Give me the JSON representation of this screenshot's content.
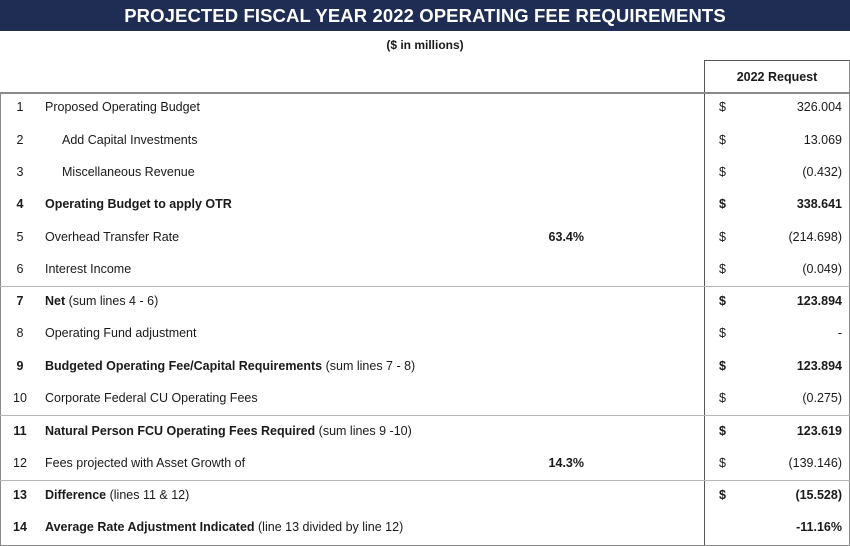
{
  "title": "PROJECTED FISCAL YEAR 2022 OPERATING FEE REQUIREMENTS",
  "subtitle": "($ in millions)",
  "column_header": "2022 Request",
  "rows": [
    {
      "num": "1",
      "label_bold": "",
      "label": "Proposed Operating Budget",
      "pct": "",
      "currency": "$",
      "value": "326.004"
    },
    {
      "num": "2",
      "label_bold": "",
      "label": "Add Capital Investments",
      "pct": "",
      "currency": "$",
      "value": "13.069"
    },
    {
      "num": "3",
      "label_bold": "",
      "label": "Miscellaneous Revenue",
      "pct": "",
      "currency": "$",
      "value": "(0.432)"
    },
    {
      "num": "4",
      "label_bold": "Operating Budget to apply OTR",
      "label": "",
      "pct": "",
      "currency": "$",
      "value": "338.641"
    },
    {
      "num": "5",
      "label_bold": "",
      "label": "Overhead Transfer Rate",
      "pct": "63.4%",
      "currency": "$",
      "value": "(214.698)"
    },
    {
      "num": "6",
      "label_bold": "",
      "label": "Interest Income",
      "pct": "",
      "currency": "$",
      "value": "(0.049)"
    },
    {
      "num": "7",
      "label_bold": "Net",
      "label": " (sum lines 4 - 6)",
      "pct": "",
      "currency": "$",
      "value": "123.894"
    },
    {
      "num": "8",
      "label_bold": "",
      "label": "Operating Fund adjustment",
      "pct": "",
      "currency": "$",
      "value": "-"
    },
    {
      "num": "9",
      "label_bold": "Budgeted Operating Fee/Capital Requirements",
      "label": " (sum lines 7 - 8)",
      "pct": "",
      "currency": "$",
      "value": "123.894"
    },
    {
      "num": "10",
      "label_bold": "",
      "label": "Corporate Federal CU Operating Fees",
      "pct": "",
      "currency": "$",
      "value": "(0.275)"
    },
    {
      "num": "11",
      "label_bold": "Natural Person FCU Operating Fees Required",
      "label": " (sum lines 9 -10)",
      "pct": "",
      "currency": "$",
      "value": "123.619"
    },
    {
      "num": "12",
      "label_bold": "",
      "label": "Fees projected with Asset Growth of",
      "pct": "14.3%",
      "currency": "$",
      "value": "(139.146)"
    },
    {
      "num": "13",
      "label_bold": "Difference",
      "label": " (lines 11 & 12)",
      "pct": "",
      "currency": "$",
      "value": "(15.528)"
    },
    {
      "num": "14",
      "label_bold": "Average Rate Adjustment Indicated",
      "label": " (line 13 divided by line 12)",
      "pct": "",
      "currency": "",
      "value": "-11.16%"
    }
  ]
}
